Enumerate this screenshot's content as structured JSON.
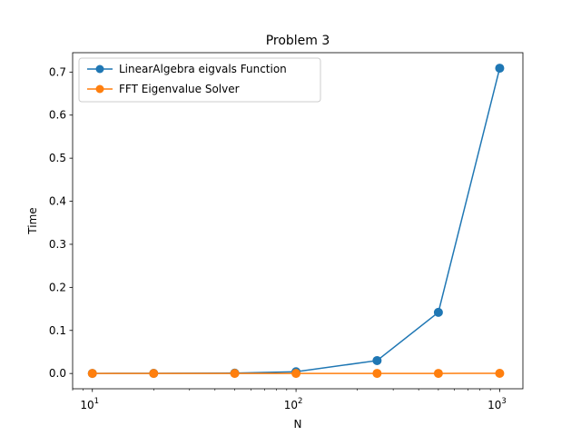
{
  "chart_data": {
    "type": "line",
    "title": "Problem 3",
    "xlabel": "N",
    "ylabel": "Time",
    "xscale": "log",
    "xlim": [
      8,
      1300
    ],
    "ylim": [
      -0.0355,
      0.745
    ],
    "x": [
      10,
      20,
      50,
      100,
      250,
      500,
      1000
    ],
    "x_ticks": [
      {
        "value": 10,
        "base": "10",
        "exp": "1"
      },
      {
        "value": 100,
        "base": "10",
        "exp": "2"
      },
      {
        "value": 1000,
        "base": "10",
        "exp": "3"
      }
    ],
    "y_ticks": [
      {
        "value": 0.0,
        "label": "0.0"
      },
      {
        "value": 0.1,
        "label": "0.1"
      },
      {
        "value": 0.2,
        "label": "0.2"
      },
      {
        "value": 0.3,
        "label": "0.3"
      },
      {
        "value": 0.4,
        "label": "0.4"
      },
      {
        "value": 0.5,
        "label": "0.5"
      },
      {
        "value": 0.6,
        "label": "0.6"
      },
      {
        "value": 0.7,
        "label": "0.7"
      }
    ],
    "grid": false,
    "legend_position": "top-left",
    "series": [
      {
        "name": "LinearAlgebra eigvals Function",
        "color": "#1f77b4",
        "marker": "circle",
        "values": [
          0.0002,
          0.0003,
          0.0008,
          0.004,
          0.03,
          0.142,
          0.709
        ]
      },
      {
        "name": "FFT Eigenvalue Solver",
        "color": "#ff7f0e",
        "marker": "circle",
        "values": [
          0.0001,
          0.0001,
          0.0001,
          0.0001,
          0.0002,
          0.0002,
          0.0004
        ]
      }
    ]
  }
}
